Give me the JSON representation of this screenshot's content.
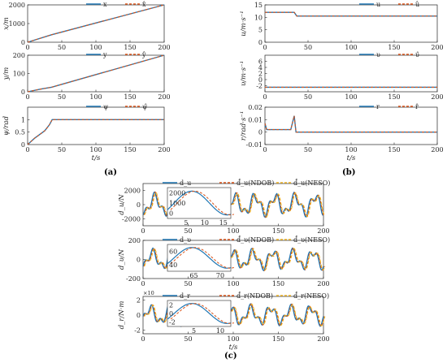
{
  "colors": {
    "actual": "#1f77b4",
    "estimate": "#d95319",
    "neso": "#edb120",
    "axis": "#262626"
  },
  "captions": [
    "(a)",
    "(b)",
    "(c)"
  ],
  "chart_data": [
    {
      "id": "x",
      "type": "line",
      "ylabel": "x/m",
      "xlabel": "",
      "xlim": [
        0,
        200
      ],
      "ylim": [
        0,
        2000
      ],
      "xticks": [
        "0",
        "50",
        "100",
        "150",
        "200"
      ],
      "yticks": [
        "0",
        "1000",
        "2000"
      ],
      "legend": [
        "x",
        "x̂"
      ],
      "series": [
        {
          "name": "x",
          "points": [
            [
              0,
              0
            ],
            [
              35,
              400
            ],
            [
              200,
              2000
            ]
          ]
        },
        {
          "name": "x̂",
          "points": [
            [
              0,
              0
            ],
            [
              35,
              400
            ],
            [
              200,
              2000
            ]
          ]
        }
      ]
    },
    {
      "id": "y",
      "type": "line",
      "ylabel": "y/m",
      "xlabel": "",
      "xlim": [
        0,
        200
      ],
      "ylim": [
        0,
        200
      ],
      "xticks": [
        "0",
        "50",
        "100",
        "150",
        "200"
      ],
      "yticks": [
        "0",
        "100",
        "200"
      ],
      "legend": [
        "y",
        "ŷ"
      ],
      "series": [
        {
          "name": "y",
          "points": [
            [
              0,
              0
            ],
            [
              20,
              15
            ],
            [
              35,
              25
            ],
            [
              200,
              200
            ]
          ]
        },
        {
          "name": "ŷ",
          "points": [
            [
              0,
              0
            ],
            [
              20,
              15
            ],
            [
              35,
              25
            ],
            [
              200,
              200
            ]
          ]
        }
      ]
    },
    {
      "id": "psi",
      "type": "line",
      "ylabel": "ψ/rad",
      "xlabel": "t/s",
      "xlim": [
        0,
        200
      ],
      "ylim": [
        0,
        1.5
      ],
      "xticks": [
        "0",
        "50",
        "100",
        "150",
        "200"
      ],
      "yticks": [
        "0",
        "0.5",
        "1"
      ],
      "legend": [
        "ψ",
        "ψ̂"
      ],
      "series": [
        {
          "name": "ψ",
          "points": [
            [
              0,
              0
            ],
            [
              10,
              0.25
            ],
            [
              25,
              0.55
            ],
            [
              32,
              0.8
            ],
            [
              36,
              1.0
            ],
            [
              40,
              1.0
            ],
            [
              200,
              1.0
            ]
          ]
        },
        {
          "name": "ψ̂",
          "points": [
            [
              0,
              0
            ],
            [
              10,
              0.25
            ],
            [
              25,
              0.55
            ],
            [
              32,
              0.8
            ],
            [
              36,
              1.0
            ],
            [
              40,
              1.0
            ],
            [
              200,
              1.0
            ]
          ]
        }
      ]
    },
    {
      "id": "u",
      "type": "line",
      "ylabel": "u/m·s⁻¹",
      "xlabel": "",
      "xlim": [
        0,
        200
      ],
      "ylim": [
        0,
        15
      ],
      "xticks": [
        "0",
        "50",
        "100",
        "150",
        "200"
      ],
      "yticks": [
        "0",
        "5",
        "10",
        "15"
      ],
      "legend": [
        "u",
        "û"
      ],
      "series": [
        {
          "name": "u",
          "points": [
            [
              0,
              12
            ],
            [
              34,
              12
            ],
            [
              37,
              10.5
            ],
            [
              200,
              10.5
            ]
          ]
        },
        {
          "name": "û",
          "points": [
            [
              0,
              12
            ],
            [
              34,
              12
            ],
            [
              37,
              10.5
            ],
            [
              200,
              10.5
            ]
          ]
        }
      ]
    },
    {
      "id": "v",
      "type": "line",
      "ylabel": "υ/m·s⁻¹",
      "xlabel": "",
      "xlim": [
        0,
        200
      ],
      "ylim": [
        -4,
        8
      ],
      "xticks": [
        "0",
        "50",
        "100",
        "150",
        "200"
      ],
      "yticks": [
        "-2",
        "0",
        "2",
        "4",
        "6"
      ],
      "legend": [
        "υ",
        "υ̂"
      ],
      "series": [
        {
          "name": "υ",
          "points": [
            [
              0,
              -2.5
            ],
            [
              200,
              -2.5
            ]
          ]
        },
        {
          "name": "υ̂",
          "points": [
            [
              0,
              -2.5
            ],
            [
              200,
              -2.5
            ]
          ]
        }
      ]
    },
    {
      "id": "r",
      "type": "line",
      "ylabel": "r/rad·s⁻¹",
      "xlabel": "t/s",
      "xlim": [
        0,
        200
      ],
      "ylim": [
        -0.01,
        0.02
      ],
      "xticks": [
        "0",
        "50",
        "100",
        "150",
        "200"
      ],
      "yticks": [
        "-0.01",
        "0",
        "0.01",
        "0.02"
      ],
      "legend": [
        "r",
        "r̂"
      ],
      "series": [
        {
          "name": "r",
          "points": [
            [
              0,
              0.007
            ],
            [
              2,
              0.002
            ],
            [
              30,
              0.002
            ],
            [
              34,
              0.013
            ],
            [
              36,
              0
            ],
            [
              38,
              0
            ],
            [
              200,
              0
            ]
          ]
        },
        {
          "name": "r̂",
          "points": [
            [
              0,
              0.007
            ],
            [
              2,
              0.002
            ],
            [
              30,
              0.002
            ],
            [
              34,
              0.013
            ],
            [
              36,
              0
            ],
            [
              38,
              0
            ],
            [
              200,
              0
            ]
          ]
        }
      ]
    },
    {
      "id": "du",
      "type": "line",
      "ylabel": "d_u/N",
      "xlabel": "",
      "xlim": [
        0,
        200
      ],
      "ylim": [
        -3000,
        3000
      ],
      "xticks": [
        "0",
        "50",
        "100",
        "150",
        "200"
      ],
      "yticks": [
        "-2000",
        "0",
        "2000"
      ],
      "legend": [
        "d_u",
        "d̂_u(NDOB)",
        "d̂_u(NESO)"
      ],
      "inset": {
        "xlim": [
          0,
          15
        ],
        "xticks": [
          "5",
          "10",
          "15"
        ],
        "yticks": [
          "0",
          "1000",
          "2000"
        ]
      }
    },
    {
      "id": "dv",
      "type": "line",
      "ylabel": "d_υ/N",
      "xlabel": "",
      "xlim": [
        0,
        200
      ],
      "ylim": [
        -200,
        200
      ],
      "xticks": [
        "0",
        "50",
        "100",
        "150",
        "200"
      ],
      "yticks": [
        "-200",
        "0",
        "200"
      ],
      "legend": [
        "d_υ",
        "d̂_υ(NDOB)",
        "d̂_υ(NESO)"
      ],
      "inset": {
        "xlim": [
          60,
          75
        ],
        "xticks": [
          "65",
          "70"
        ],
        "yticks": [
          "40",
          "60"
        ]
      }
    },
    {
      "id": "dr",
      "type": "line",
      "ylabel": "d_r/N·m",
      "xlabel": "t/s",
      "xlim": [
        0,
        200
      ],
      "ylim": [
        -2.5,
        2.5
      ],
      "xticks": [
        "0",
        "50",
        "100",
        "150",
        "200"
      ],
      "yticks": [
        "-2",
        "0",
        "2"
      ],
      "exponent": "×10",
      "legend": [
        "d_r",
        "d̂_r(NDOB)",
        "d̂_r(NESO)"
      ],
      "inset": {
        "xlim": [
          0,
          10
        ],
        "xticks": [
          "5",
          "10"
        ],
        "yticks": [
          "-2",
          "0",
          "2"
        ]
      }
    }
  ]
}
